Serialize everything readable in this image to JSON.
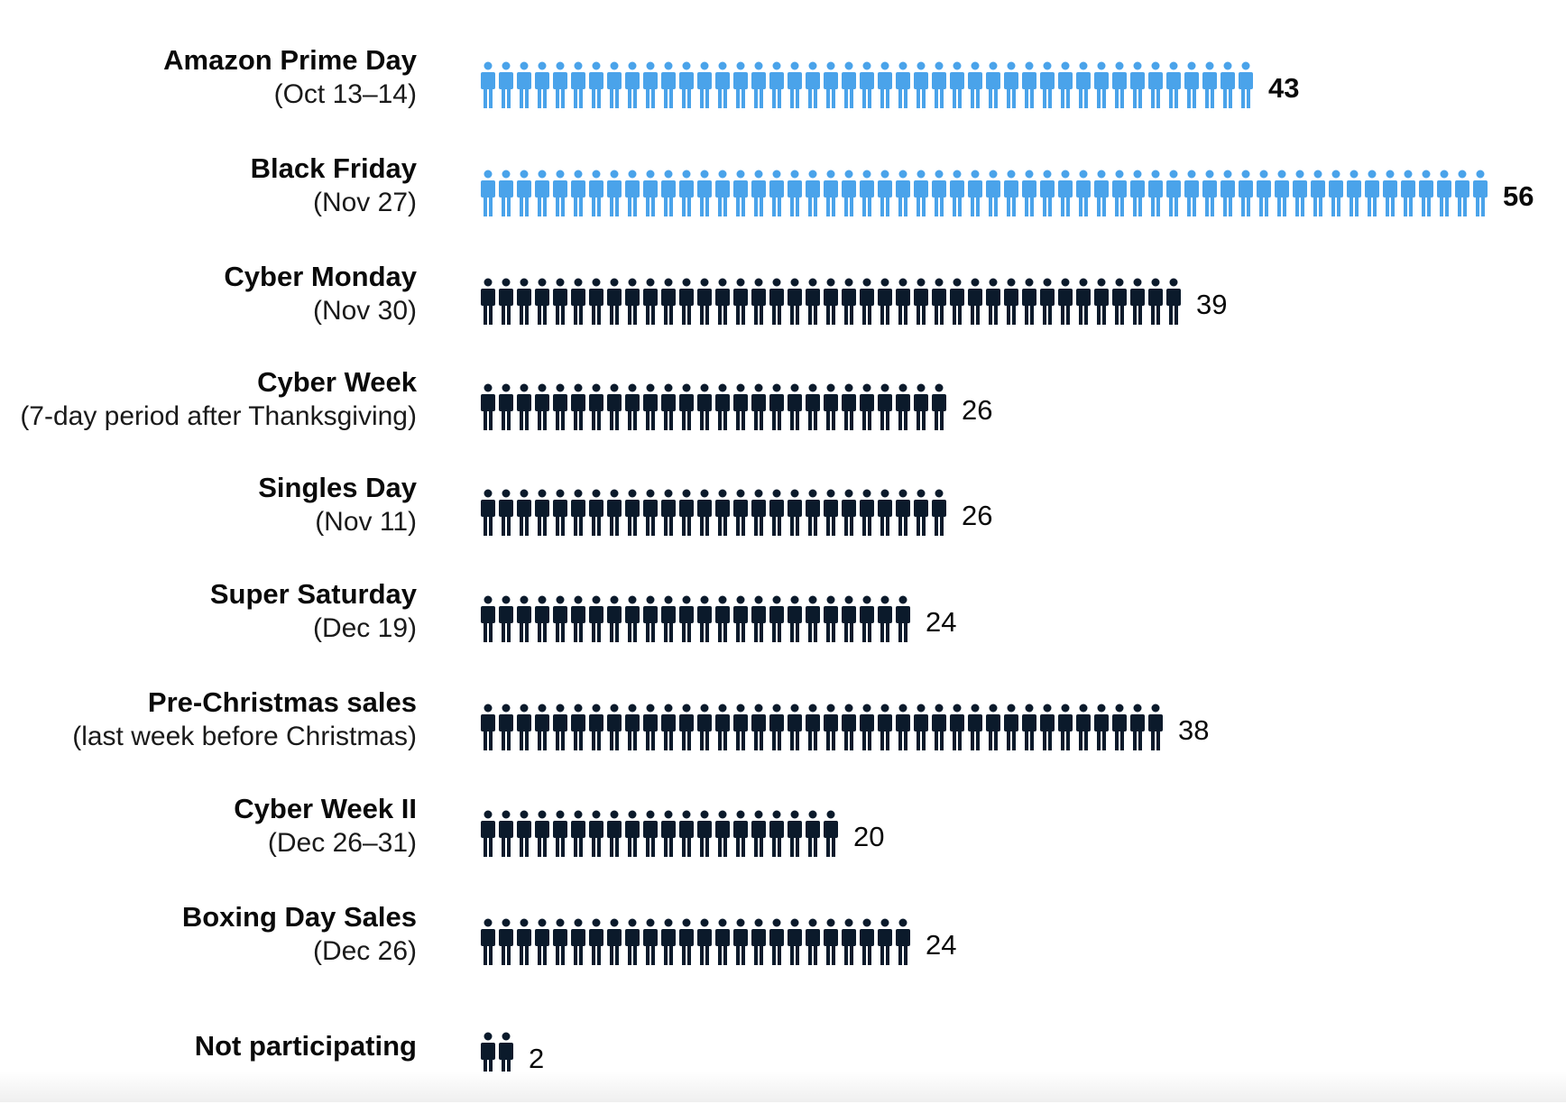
{
  "chart_data": {
    "type": "bar",
    "orientation": "horizontal",
    "mark": "pictogram-person",
    "categories": [
      {
        "name": "Amazon Prime Day",
        "sub": "(Oct  13–14)"
      },
      {
        "name": "Black Friday",
        "sub": "(Nov 27)"
      },
      {
        "name": "Cyber Monday",
        "sub": "(Nov 30)"
      },
      {
        "name": "Cyber Week",
        "sub": "(7-day period after Thanksgiving)"
      },
      {
        "name": "Singles Day",
        "sub": "(Nov 11)"
      },
      {
        "name": "Super Saturday",
        "sub": "(Dec 19)"
      },
      {
        "name": "Pre-Christmas sales",
        "sub": "(last week before Christmas)"
      },
      {
        "name": "Cyber Week II",
        "sub": "(Dec 26–31)"
      },
      {
        "name": "Boxing Day Sales",
        "sub": "(Dec 26)"
      },
      {
        "name": "Not participating",
        "sub": ""
      }
    ],
    "values": [
      43,
      56,
      39,
      26,
      26,
      24,
      38,
      20,
      24,
      2
    ],
    "highlighted": [
      true,
      true,
      false,
      false,
      false,
      false,
      false,
      false,
      false,
      false
    ],
    "colors": {
      "highlight": "#4aa3ea",
      "default": "#0b1a2b"
    }
  }
}
